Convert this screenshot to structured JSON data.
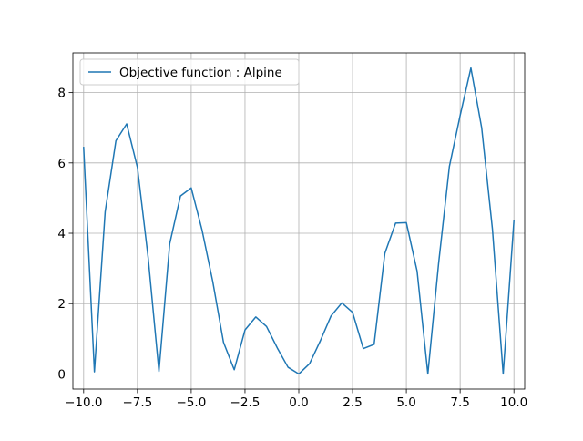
{
  "chart_data": {
    "type": "line",
    "title": "",
    "xlabel": "",
    "ylabel": "",
    "xlim": [
      -10.5,
      10.5
    ],
    "ylim": [
      -0.43,
      9.13
    ],
    "grid": true,
    "legend_position": "top-left",
    "line_color": "#1f77b4",
    "x_ticks": [
      -10.0,
      -7.5,
      -5.0,
      -2.5,
      0.0,
      2.5,
      5.0,
      7.5,
      10.0
    ],
    "x_tick_labels": [
      "−10.0",
      "−7.5",
      "−5.0",
      "−2.5",
      "0.0",
      "2.5",
      "5.0",
      "7.5",
      "10.0"
    ],
    "y_ticks": [
      0,
      2,
      4,
      6,
      8
    ],
    "y_tick_labels": [
      "0",
      "2",
      "4",
      "6",
      "8"
    ],
    "series": [
      {
        "name": "Objective function : Alpine",
        "x": [
          -10.0,
          -9.5,
          -9.0,
          -8.5,
          -8.0,
          -7.5,
          -7.0,
          -6.5,
          -6.0,
          -5.5,
          -5.0,
          -4.5,
          -4.0,
          -3.5,
          -3.0,
          -2.5,
          -2.0,
          -1.5,
          -1.0,
          -0.5,
          0.0,
          0.5,
          1.0,
          1.5,
          2.0,
          2.5,
          3.0,
          3.5,
          4.0,
          4.5,
          5.0,
          5.5,
          6.0,
          6.5,
          7.0,
          7.5,
          8.0,
          8.5,
          9.0,
          9.5,
          10.0
        ],
        "y": [
          6.44,
          0.06,
          4.61,
          6.63,
          7.11,
          5.87,
          3.3,
          0.07,
          3.7,
          5.06,
          5.29,
          4.1,
          2.63,
          0.9,
          0.12,
          1.25,
          1.62,
          1.35,
          0.74,
          0.19,
          0.0,
          0.29,
          0.94,
          1.65,
          2.02,
          1.75,
          0.72,
          0.84,
          3.43,
          4.29,
          4.3,
          2.92,
          0.0,
          3.15,
          5.9,
          7.35,
          8.7,
          7.0,
          4.12,
          0.0,
          4.36
        ]
      }
    ]
  }
}
